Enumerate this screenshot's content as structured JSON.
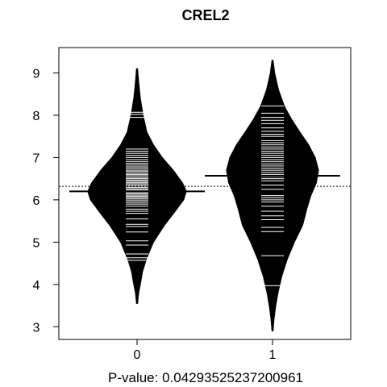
{
  "chart_data": {
    "type": "beanplot",
    "title": "CREL2",
    "xlabel": "P-value: 0.0429352523720096​1",
    "categories": [
      "0",
      "1"
    ],
    "y_ticks": [
      "3",
      "4",
      "5",
      "6",
      "7",
      "8",
      "9"
    ],
    "ylim": [
      2.7,
      9.6
    ],
    "overall_mean": 6.32,
    "groups": [
      {
        "name": "0",
        "mean": 6.2,
        "density": [
          [
            3.55,
            0.01
          ],
          [
            3.8,
            0.03
          ],
          [
            4.0,
            0.06
          ],
          [
            4.3,
            0.1
          ],
          [
            4.6,
            0.17
          ],
          [
            5.0,
            0.3
          ],
          [
            5.4,
            0.5
          ],
          [
            5.7,
            0.68
          ],
          [
            6.0,
            0.85
          ],
          [
            6.2,
            0.9
          ],
          [
            6.4,
            0.83
          ],
          [
            6.7,
            0.66
          ],
          [
            7.0,
            0.46
          ],
          [
            7.3,
            0.3
          ],
          [
            7.6,
            0.18
          ],
          [
            8.0,
            0.11
          ],
          [
            8.4,
            0.06
          ],
          [
            8.8,
            0.03
          ],
          [
            9.1,
            0.01
          ]
        ],
        "observations": [
          4.57,
          4.63,
          4.72,
          4.93,
          5.03,
          5.24,
          5.37,
          5.42,
          5.55,
          5.68,
          5.73,
          5.78,
          5.85,
          5.9,
          5.94,
          5.98,
          6.02,
          6.05,
          6.08,
          6.11,
          6.14,
          6.17,
          6.2,
          6.23,
          6.26,
          6.29,
          6.32,
          6.35,
          6.38,
          6.41,
          6.44,
          6.47,
          6.5,
          6.53,
          6.57,
          6.6,
          6.63,
          6.67,
          6.7,
          6.74,
          6.78,
          6.82,
          6.86,
          6.9,
          6.95,
          7.0,
          7.05,
          7.1,
          7.15,
          7.2,
          7.95,
          8.02,
          8.07
        ]
      },
      {
        "name": "1",
        "mean": 6.57,
        "density": [
          [
            2.9,
            0.01
          ],
          [
            3.2,
            0.03
          ],
          [
            3.5,
            0.06
          ],
          [
            3.8,
            0.1
          ],
          [
            4.2,
            0.17
          ],
          [
            4.6,
            0.27
          ],
          [
            5.0,
            0.4
          ],
          [
            5.4,
            0.55
          ],
          [
            5.8,
            0.63
          ],
          [
            6.1,
            0.7
          ],
          [
            6.4,
            0.8
          ],
          [
            6.7,
            0.84
          ],
          [
            7.0,
            0.78
          ],
          [
            7.3,
            0.66
          ],
          [
            7.6,
            0.5
          ],
          [
            7.9,
            0.35
          ],
          [
            8.2,
            0.22
          ],
          [
            8.6,
            0.11
          ],
          [
            9.0,
            0.04
          ],
          [
            9.3,
            0.01
          ]
        ],
        "observations": [
          3.97,
          4.68,
          5.25,
          5.35,
          5.53,
          5.62,
          5.73,
          5.85,
          5.95,
          6.0,
          6.05,
          6.1,
          6.25,
          6.35,
          6.45,
          6.5,
          6.55,
          6.6,
          6.65,
          6.7,
          6.75,
          6.8,
          6.85,
          6.9,
          6.95,
          7.0,
          7.05,
          7.1,
          7.15,
          7.2,
          7.25,
          7.3,
          7.35,
          7.4,
          7.5,
          7.55,
          7.62,
          7.7,
          7.8,
          7.88,
          7.95,
          8.05,
          8.22
        ]
      }
    ]
  }
}
